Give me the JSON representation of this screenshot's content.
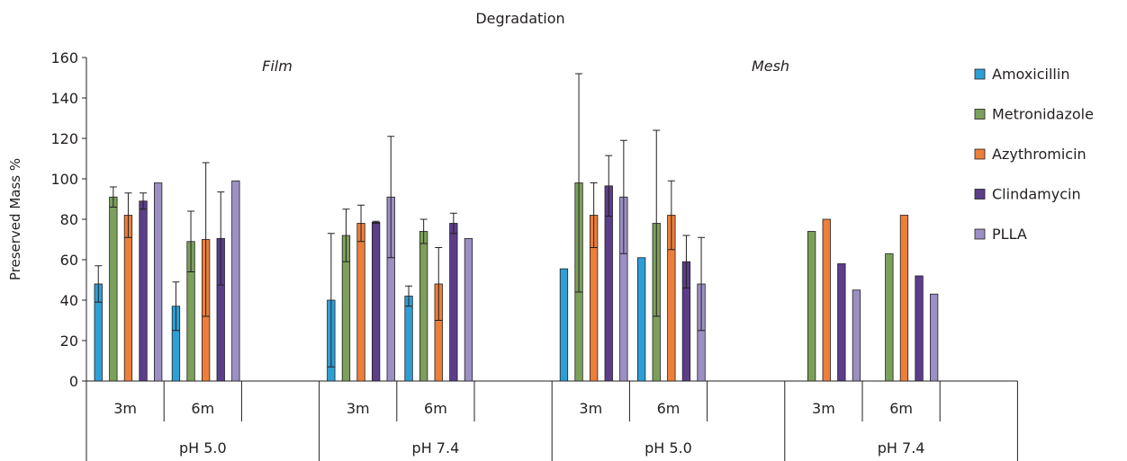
{
  "chart_data": {
    "type": "bar",
    "title": "Degradation",
    "ylabel": "Preserved Mass %",
    "xlabel": "",
    "ylim": [
      0,
      160
    ],
    "yticks": [
      0,
      20,
      40,
      60,
      80,
      100,
      120,
      140,
      160
    ],
    "grid": false,
    "legend_position": "right",
    "panels": [
      "Film",
      "Mesh"
    ],
    "ph_groups": [
      "pH 5.0",
      "pH 7.4",
      "pH 5.0",
      "pH 7.4"
    ],
    "time_labels": [
      "3m",
      "6m"
    ],
    "categories": [
      "Film pH 5.0 3m",
      "Film pH 5.0 6m",
      "Film pH 7.4 3m",
      "Film pH 7.4 6m",
      "Mesh pH 5.0 3m",
      "Mesh pH 5.0 6m",
      "Mesh pH 7.4 3m",
      "Mesh pH 7.4 6m"
    ],
    "series": [
      {
        "name": "Amoxicillin",
        "color": "#2e9fd6",
        "values": [
          48,
          37,
          40,
          42,
          55.5,
          61,
          null,
          null
        ],
        "errors": [
          9,
          12,
          33,
          5,
          null,
          null,
          null,
          null
        ]
      },
      {
        "name": "Metronidazole",
        "color": "#7ba05b",
        "values": [
          91,
          69,
          72,
          74,
          98,
          78,
          74,
          63
        ],
        "errors": [
          5,
          15,
          13,
          6,
          54,
          46,
          null,
          null
        ]
      },
      {
        "name": "Azythromicin",
        "color": "#ec7f3a",
        "values": [
          82,
          70,
          78,
          48,
          82,
          82,
          80,
          82
        ],
        "errors": [
          11,
          38,
          9,
          18,
          16,
          17,
          null,
          null
        ]
      },
      {
        "name": "Clindamycin",
        "color": "#5b3d8a",
        "values": [
          89,
          70.5,
          78.5,
          78,
          96.5,
          59,
          58,
          52
        ],
        "errors": [
          4,
          23,
          0.5,
          5,
          15,
          13,
          null,
          null
        ]
      },
      {
        "name": "PLLA",
        "color": "#9b8fc4",
        "values": [
          98,
          99,
          91,
          70.5,
          91,
          48,
          45,
          43
        ],
        "errors": [
          null,
          null,
          30,
          null,
          28,
          23,
          null,
          null
        ]
      }
    ]
  }
}
